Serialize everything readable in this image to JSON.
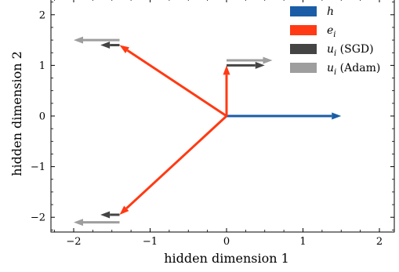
{
  "chart_data": {
    "type": "vector-field",
    "xlabel": "hidden dimension 1",
    "ylabel": "hidden dimension 2",
    "xlim": [
      -2.3,
      2.3
    ],
    "ylim": [
      -2.3,
      2.3
    ],
    "xticks": [
      -2,
      -1,
      0,
      1,
      2
    ],
    "yticks": [
      -2,
      -1,
      0,
      1,
      2
    ],
    "xtick_labels": [
      "−2",
      "−1",
      "0",
      "1",
      "2"
    ],
    "ytick_labels": [
      "−2",
      "−1",
      "0",
      "1",
      "2"
    ],
    "grid": false,
    "legend_position": "top-right",
    "legend": [
      {
        "label": "h",
        "label_sub": "",
        "label_suffix": "",
        "color": "#1a5da6"
      },
      {
        "label": "e",
        "label_sub": "i",
        "label_suffix": "",
        "color": "#ff3a14"
      },
      {
        "label": "u",
        "label_sub": "i",
        "label_suffix": " (SGD)",
        "color": "#444444"
      },
      {
        "label": "u",
        "label_sub": "i",
        "label_suffix": " (Adam)",
        "color": "#9e9e9e"
      }
    ],
    "series": [
      {
        "name": "h",
        "color": "#1a5da6",
        "vectors": [
          {
            "x0": 0,
            "y0": 0,
            "x1": 1.5,
            "y1": 0
          }
        ]
      },
      {
        "name": "e_i",
        "color": "#ff3a14",
        "vectors": [
          {
            "x0": 0,
            "y0": 0,
            "x1": 0,
            "y1": 1.0
          },
          {
            "x0": 0,
            "y0": 0,
            "x1": -1.4,
            "y1": 1.4
          },
          {
            "x0": 0,
            "y0": 0,
            "x1": -1.4,
            "y1": -1.95
          }
        ]
      },
      {
        "name": "u_i (Adam)",
        "color": "#9e9e9e",
        "vectors": [
          {
            "x0": 0,
            "y0": 1.1,
            "x1": 0.6,
            "y1": 1.1
          },
          {
            "x0": -1.4,
            "y0": 1.5,
            "x1": -2.0,
            "y1": 1.5
          },
          {
            "x0": -1.4,
            "y0": -2.1,
            "x1": -2.0,
            "y1": -2.1
          }
        ]
      },
      {
        "name": "u_i (SGD)",
        "color": "#444444",
        "vectors": [
          {
            "x0": 0,
            "y0": 1.0,
            "x1": 0.5,
            "y1": 1.0
          },
          {
            "x0": -1.4,
            "y0": 1.4,
            "x1": -1.65,
            "y1": 1.4
          },
          {
            "x0": -1.4,
            "y0": -1.95,
            "x1": -1.65,
            "y1": -1.95
          }
        ]
      }
    ]
  }
}
